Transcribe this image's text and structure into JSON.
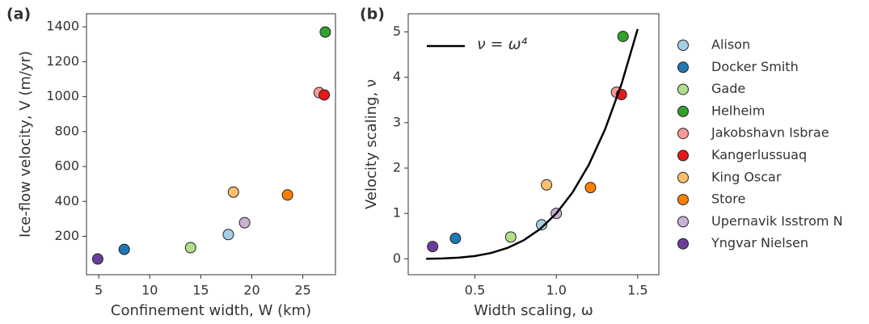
{
  "chart_data": [
    {
      "type": "scatter",
      "panel_label": "(a)",
      "xlabel": "Confinement width, W (km)",
      "ylabel": "Ice-flow velocity, V (m/yr)",
      "xlim": [
        3.8,
        28.2
      ],
      "xticks": [
        5,
        10,
        15,
        20,
        25
      ],
      "ylim": [
        -20,
        1475
      ],
      "yticks": [
        200,
        400,
        600,
        800,
        1000,
        1200,
        1400
      ],
      "series": [
        {
          "name": "Alison",
          "color": "#a6cee3",
          "x": [
            17.7
          ],
          "values": [
            210
          ]
        },
        {
          "name": "Docker Smith",
          "color": "#1f78b4",
          "x": [
            7.5
          ],
          "values": [
            125
          ]
        },
        {
          "name": "Gade",
          "color": "#b2df8a",
          "x": [
            14.0
          ],
          "values": [
            135
          ]
        },
        {
          "name": "Helheim",
          "color": "#33a02c",
          "x": [
            27.2
          ],
          "values": [
            1370
          ]
        },
        {
          "name": "Jakobshavn Isbrae",
          "color": "#fb9a99",
          "x": [
            26.6
          ],
          "values": [
            1023
          ]
        },
        {
          "name": "Kangerlussuaq",
          "color": "#e31a1c",
          "x": [
            27.1
          ],
          "values": [
            1010
          ]
        },
        {
          "name": "King Oscar",
          "color": "#fdbf6f",
          "x": [
            18.2
          ],
          "values": [
            453
          ]
        },
        {
          "name": "Store",
          "color": "#ff7f00",
          "x": [
            23.5
          ],
          "values": [
            437
          ]
        },
        {
          "name": "Upernavik Isstrom N",
          "color": "#cab2d6",
          "x": [
            19.3
          ],
          "values": [
            278
          ]
        },
        {
          "name": "Yngvar Nielsen",
          "color": "#6a3d9a",
          "x": [
            4.9
          ],
          "values": [
            70
          ]
        }
      ]
    },
    {
      "type": "scatter",
      "panel_label": "(b)",
      "xlabel": "Width scaling, ω",
      "ylabel": "Velocity scaling, ν",
      "xlim": [
        0.09,
        1.63
      ],
      "xticks": [
        0.5,
        {
          "value": 1,
          "label": "1.0"
        },
        1.5
      ],
      "ylim": [
        -0.35,
        5.4
      ],
      "yticks": [
        0,
        1,
        2,
        3,
        4,
        5
      ],
      "series": [
        {
          "name": "Alison",
          "color": "#a6cee3",
          "x": [
            0.91
          ],
          "values": [
            0.75
          ]
        },
        {
          "name": "Docker Smith",
          "color": "#1f78b4",
          "x": [
            0.38
          ],
          "values": [
            0.45
          ]
        },
        {
          "name": "Gade",
          "color": "#b2df8a",
          "x": [
            0.72
          ],
          "values": [
            0.48
          ]
        },
        {
          "name": "Helheim",
          "color": "#33a02c",
          "x": [
            1.41
          ],
          "values": [
            4.9
          ]
        },
        {
          "name": "Jakobshavn Isbrae",
          "color": "#fb9a99",
          "x": [
            1.37
          ],
          "values": [
            3.67
          ]
        },
        {
          "name": "Kangerlussuaq",
          "color": "#e31a1c",
          "x": [
            1.4
          ],
          "values": [
            3.62
          ]
        },
        {
          "name": "King Oscar",
          "color": "#fdbf6f",
          "x": [
            0.94
          ],
          "values": [
            1.63
          ]
        },
        {
          "name": "Store",
          "color": "#ff7f00",
          "x": [
            1.21
          ],
          "values": [
            1.57
          ]
        },
        {
          "name": "Upernavik Isstrom N",
          "color": "#cab2d6",
          "x": [
            1.0
          ],
          "values": [
            1.0
          ]
        },
        {
          "name": "Yngvar Nielsen",
          "color": "#6a3d9a",
          "x": [
            0.24
          ],
          "values": [
            0.27
          ]
        },
        {
          "name": "ν = ω⁴",
          "type": "line",
          "color": "#000000",
          "x": [
            0.2,
            0.3,
            0.4,
            0.5,
            0.6,
            0.7,
            0.8,
            0.9,
            1.0,
            1.1,
            1.2,
            1.3,
            1.4,
            1.5
          ],
          "values": [
            0.0016,
            0.0081,
            0.0256,
            0.0625,
            0.1296,
            0.2401,
            0.4096,
            0.6561,
            1,
            1.4641,
            2.0736,
            2.8561,
            3.8416,
            5.0625
          ]
        }
      ]
    }
  ]
}
